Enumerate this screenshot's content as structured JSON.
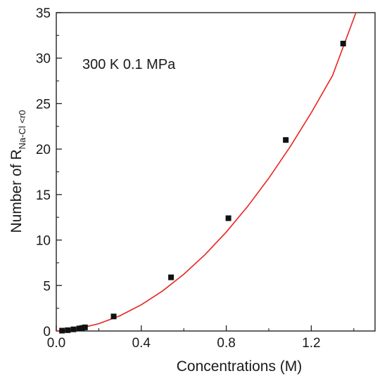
{
  "chart_data": {
    "type": "scatter",
    "annotation": "300 K  0.1 MPa",
    "xlabel": "Concentrations (M)",
    "ylabel": {
      "main": "Number of R",
      "subscript": "Na-Cl <r0"
    },
    "xlim": [
      0,
      1.5
    ],
    "ylim": [
      0,
      35
    ],
    "x_ticks": [
      "0.0",
      "0.4",
      "0.8",
      "1.2"
    ],
    "x_tick_values": [
      0.0,
      0.4,
      0.8,
      1.2
    ],
    "y_ticks": [
      "0",
      "5",
      "10",
      "15",
      "20",
      "25",
      "30",
      "35"
    ],
    "y_tick_values": [
      0,
      5,
      10,
      15,
      20,
      25,
      30,
      35
    ],
    "series": [
      {
        "kind": "points",
        "marker": "square",
        "color": "#111111",
        "x": [
          0.027,
          0.054,
          0.081,
          0.108,
          0.122,
          0.135,
          0.27,
          0.54,
          0.81,
          1.08,
          1.35
        ],
        "y": [
          0.04,
          0.09,
          0.18,
          0.28,
          0.33,
          0.4,
          1.6,
          5.9,
          12.4,
          21.0,
          31.6
        ]
      },
      {
        "kind": "fit-line",
        "color": "#e8231f",
        "x": [
          0,
          0.1,
          0.2,
          0.3,
          0.4,
          0.5,
          0.6,
          0.7,
          0.8,
          0.9,
          1.0,
          1.1,
          1.2,
          1.3,
          1.41
        ],
        "y": [
          0,
          0.24,
          0.8,
          1.68,
          2.88,
          4.4,
          6.24,
          8.4,
          10.88,
          13.68,
          16.8,
          20.24,
          24.0,
          28.08,
          35.0
        ]
      }
    ]
  }
}
